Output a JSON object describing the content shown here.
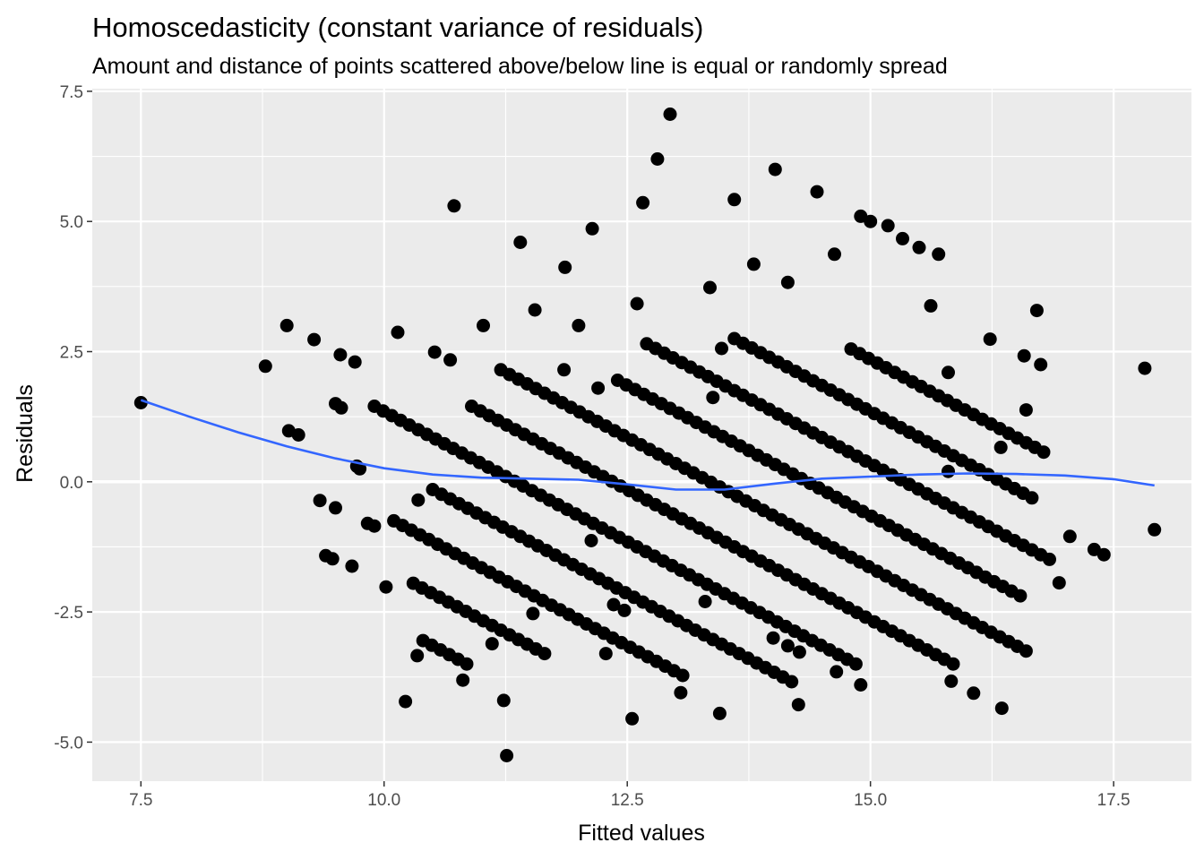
{
  "chart_data": {
    "type": "scatter",
    "title": "Homoscedasticity (constant variance of residuals)",
    "subtitle": "Amount and distance of points scattered above/below line is equal or randomly spread",
    "xlabel": "Fitted values",
    "ylabel": "Residuals",
    "xlim": [
      7.0,
      18.3
    ],
    "ylim": [
      -5.75,
      7.55
    ],
    "x_ticks": [
      7.5,
      10.0,
      12.5,
      15.0,
      17.5
    ],
    "x_tick_labels": [
      "7.5",
      "10.0",
      "12.5",
      "15.0",
      "17.5"
    ],
    "y_ticks": [
      -5.0,
      -2.5,
      0.0,
      2.5,
      5.0,
      7.5
    ],
    "y_tick_labels": [
      "-5.0",
      "-2.5",
      "0.0",
      "2.5",
      "5.0",
      "7.5"
    ],
    "grid": true,
    "reference_line": {
      "y": 0,
      "color": "#ffffff"
    },
    "panel_background": "#ebebeb",
    "point_color": "#000000",
    "line_color": "#3366ff",
    "bands": [
      {
        "c": 11.35,
        "xr": [
          9.9,
          14.9
        ]
      },
      {
        "c": 12.35,
        "xr": [
          10.9,
          15.9
        ]
      },
      {
        "c": 13.35,
        "xr": [
          11.2,
          16.6
        ]
      },
      {
        "c": 14.35,
        "xr": [
          12.4,
          16.6
        ]
      },
      {
        "c": 15.35,
        "xr": [
          12.7,
          16.9
        ]
      },
      {
        "c": 10.35,
        "xr": [
          10.5,
          14.2
        ]
      },
      {
        "c": 9.35,
        "xr": [
          10.1,
          13.1
        ]
      },
      {
        "c": 8.35,
        "xr": [
          10.3,
          11.7
        ]
      },
      {
        "c": 16.35,
        "xr": [
          13.6,
          16.7
        ]
      },
      {
        "c": 17.35,
        "xr": [
          14.8,
          16.8
        ]
      },
      {
        "c": 7.35,
        "xr": [
          10.4,
          10.9
        ]
      }
    ],
    "points": [
      [
        7.5,
        1.52
      ],
      [
        8.78,
        2.22
      ],
      [
        9.0,
        3.0
      ],
      [
        9.02,
        0.98
      ],
      [
        9.12,
        0.9
      ],
      [
        9.28,
        2.73
      ],
      [
        9.34,
        -0.36
      ],
      [
        9.4,
        -1.42
      ],
      [
        9.47,
        -1.48
      ],
      [
        9.5,
        -0.5
      ],
      [
        9.5,
        1.5
      ],
      [
        9.56,
        1.42
      ],
      [
        9.55,
        2.44
      ],
      [
        9.67,
        -1.62
      ],
      [
        9.7,
        2.3
      ],
      [
        9.72,
        0.3
      ],
      [
        9.75,
        0.25
      ],
      [
        9.83,
        -0.8
      ],
      [
        9.9,
        -0.85
      ],
      [
        10.02,
        -2.02
      ],
      [
        10.14,
        2.87
      ],
      [
        10.22,
        -4.22
      ],
      [
        10.34,
        -3.34
      ],
      [
        10.35,
        -0.35
      ],
      [
        10.52,
        2.49
      ],
      [
        10.68,
        2.34
      ],
      [
        10.72,
        5.3
      ],
      [
        10.81,
        -3.81
      ],
      [
        11.02,
        3.0
      ],
      [
        11.11,
        -3.11
      ],
      [
        11.23,
        -4.2
      ],
      [
        11.26,
        -5.26
      ],
      [
        11.53,
        -2.53
      ],
      [
        11.4,
        4.6
      ],
      [
        12.14,
        4.86
      ],
      [
        12.0,
        3.0
      ],
      [
        12.13,
        -1.13
      ],
      [
        12.2,
        1.8
      ],
      [
        12.28,
        -3.3
      ],
      [
        12.36,
        -2.36
      ],
      [
        12.47,
        -2.47
      ],
      [
        12.55,
        -4.55
      ],
      [
        12.66,
        5.36
      ],
      [
        12.81,
        6.2
      ],
      [
        12.94,
        7.06
      ],
      [
        13.05,
        -4.05
      ],
      [
        13.3,
        -2.3
      ],
      [
        13.35,
        3.73
      ],
      [
        13.45,
        -4.45
      ],
      [
        13.6,
        5.42
      ],
      [
        13.8,
        4.18
      ],
      [
        14.02,
        6.0
      ],
      [
        14.0,
        -3.0
      ],
      [
        14.15,
        -3.15
      ],
      [
        14.26,
        -4.28
      ],
      [
        14.27,
        -3.27
      ],
      [
        14.45,
        5.57
      ],
      [
        14.63,
        4.37
      ],
      [
        14.65,
        -3.65
      ],
      [
        14.9,
        -3.9
      ],
      [
        14.9,
        5.1
      ],
      [
        15.0,
        5.0
      ],
      [
        15.18,
        4.92
      ],
      [
        15.33,
        4.67
      ],
      [
        15.5,
        4.5
      ],
      [
        15.7,
        4.37
      ],
      [
        15.62,
        3.38
      ],
      [
        15.83,
        -3.83
      ],
      [
        16.06,
        -4.06
      ],
      [
        16.23,
        2.74
      ],
      [
        16.34,
        0.66
      ],
      [
        16.35,
        -4.35
      ],
      [
        16.58,
        2.42
      ],
      [
        16.6,
        1.38
      ],
      [
        16.71,
        3.29
      ],
      [
        16.75,
        2.25
      ],
      [
        16.94,
        -1.94
      ],
      [
        17.05,
        -1.05
      ],
      [
        17.3,
        -1.3
      ],
      [
        17.4,
        -1.4
      ],
      [
        17.82,
        2.18
      ],
      [
        17.92,
        -0.92
      ],
      [
        11.86,
        4.12
      ],
      [
        11.55,
        3.3
      ],
      [
        11.85,
        2.15
      ],
      [
        12.6,
        3.42
      ],
      [
        13.38,
        1.62
      ],
      [
        14.15,
        3.83
      ],
      [
        13.47,
        2.56
      ],
      [
        15.8,
        2.1
      ],
      [
        15.8,
        0.2
      ]
    ],
    "smooth_curve": [
      [
        7.5,
        1.57
      ],
      [
        8.0,
        1.25
      ],
      [
        8.5,
        0.95
      ],
      [
        9.0,
        0.68
      ],
      [
        9.5,
        0.45
      ],
      [
        10.0,
        0.26
      ],
      [
        10.5,
        0.14
      ],
      [
        11.0,
        0.08
      ],
      [
        11.5,
        0.06
      ],
      [
        12.0,
        0.04
      ],
      [
        12.5,
        -0.05
      ],
      [
        13.0,
        -0.15
      ],
      [
        13.5,
        -0.15
      ],
      [
        14.0,
        -0.04
      ],
      [
        14.5,
        0.06
      ],
      [
        15.0,
        0.1
      ],
      [
        15.5,
        0.14
      ],
      [
        16.0,
        0.16
      ],
      [
        16.5,
        0.15
      ],
      [
        17.0,
        0.12
      ],
      [
        17.5,
        0.05
      ],
      [
        17.92,
        -0.07
      ]
    ]
  }
}
